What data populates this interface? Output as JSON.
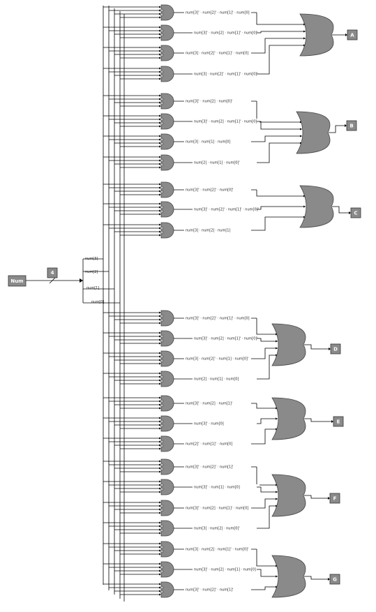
{
  "input": {
    "label": "Num",
    "width": "4"
  },
  "bus_labels": [
    "num[3]",
    "num[2]",
    "num[1]",
    "num[0]"
  ],
  "outputs": [
    {
      "name": "A",
      "terms": [
        "num[3]' · num[2]' · num[1]' · num[0]",
        "num[3]' · num[2] · num[1]' · num[0]'",
        "num[3] · num[2]' · num[1]' · num[0]",
        "num[3] · num[2]' · num[1]' · num[0]'"
      ]
    },
    {
      "name": "B",
      "terms": [
        "num[3]' · num[2] · num[0]'",
        "num[3]' · num[2] · num[1]' · num[0]",
        "num[3] · num[1] · num[0]",
        "num[2] · num[1] · num[0]'"
      ]
    },
    {
      "name": "C",
      "terms": [
        "num[3]' · num[2]' · num[0]'",
        "num[3]' · num[2]' · num[1]' · num[0]'",
        "num[3] · num[2] · num[1]"
      ]
    },
    {
      "name": "D",
      "terms": [
        "num[3]' · num[2]' · num[1]' · num[0]",
        "num[3]' · num[2] · num[1]' · num[0]'",
        "num[3] · num[2]' · num[1] · num[0]'",
        "num[2] · num[1] · num[0]"
      ]
    },
    {
      "name": "E",
      "terms": [
        "num[3]' · num[2] · num[1]'",
        "num[3]' · num[0]",
        "num[2]' · num[1]' · num[0]"
      ]
    },
    {
      "name": "F",
      "terms": [
        "num[3]' · num[2]' · num[1]'",
        "num[3]' · num[1] · num[0]",
        "num[3]' · num[2] · num[1]' · num[0]",
        "num[3] · num[2] · num[0]'"
      ]
    },
    {
      "name": "G",
      "terms": [
        "num[3] · num[2] · num[1]' · num[0]'",
        "num[3]' · num[2] · num[1] · num[0]",
        "num[3]' · num[2]' · num[1]'"
      ]
    }
  ]
}
